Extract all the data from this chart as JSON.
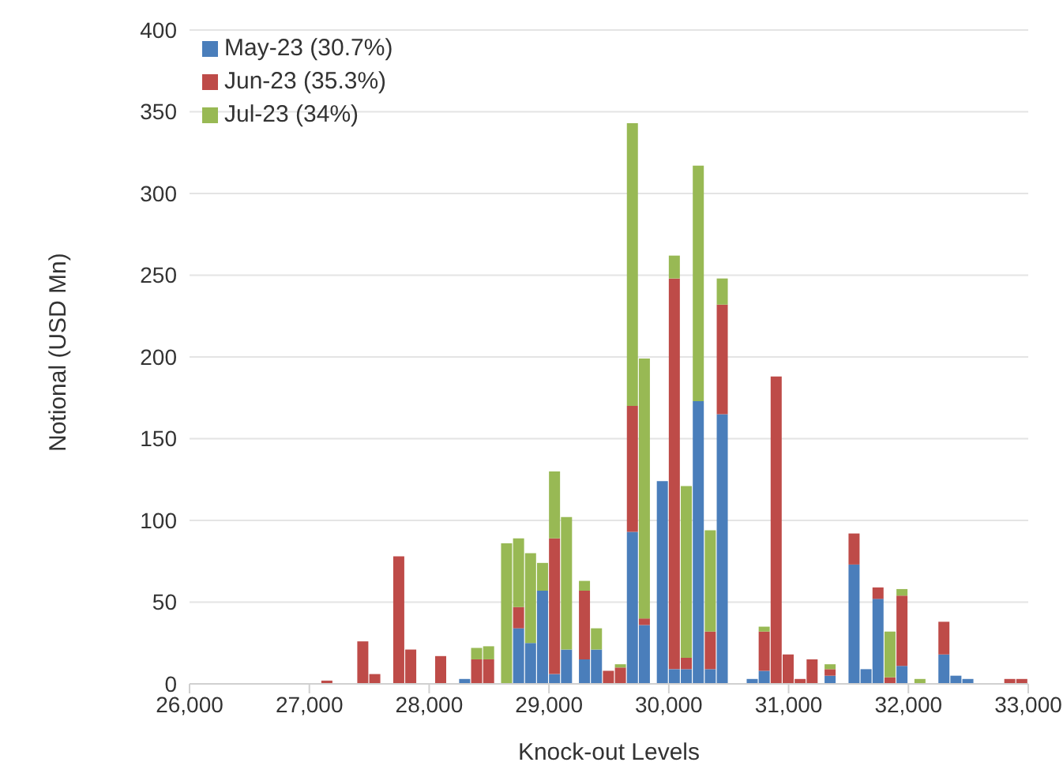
{
  "chart_data": {
    "type": "bar",
    "stacked": true,
    "xlabel": "Knock-out Levels",
    "ylabel": "Notional (USD Mn)",
    "x": [
      27150,
      27450,
      27550,
      27750,
      27850,
      28100,
      28300,
      28400,
      28500,
      28650,
      28750,
      28850,
      28950,
      29050,
      29150,
      29300,
      29400,
      29500,
      29600,
      29700,
      29800,
      29950,
      30050,
      30150,
      30250,
      30350,
      30450,
      30700,
      30800,
      30900,
      31000,
      31100,
      31200,
      31350,
      31550,
      31650,
      31750,
      31850,
      31950,
      32100,
      32300,
      32400,
      32500,
      32850,
      32950
    ],
    "series": [
      {
        "name": "May-23 (30.7%)",
        "color": "#4a7ebb",
        "values": [
          null,
          null,
          null,
          null,
          null,
          null,
          3,
          null,
          null,
          null,
          34,
          25,
          57,
          6,
          21,
          15,
          21,
          null,
          null,
          93,
          36,
          124,
          9,
          9,
          173,
          9,
          165,
          3,
          8,
          null,
          null,
          null,
          null,
          5,
          73,
          9,
          52,
          null,
          11,
          null,
          18,
          5,
          3,
          null,
          null
        ]
      },
      {
        "name": "Jun-23 (35.3%)",
        "color": "#be4b48",
        "values": [
          2,
          26,
          6,
          78,
          21,
          17,
          null,
          15,
          15,
          null,
          13,
          null,
          null,
          83,
          null,
          42,
          null,
          8,
          10,
          77,
          4,
          null,
          239,
          7,
          null,
          23,
          67,
          null,
          24,
          188,
          18,
          3,
          15,
          4,
          19,
          null,
          7,
          4,
          43,
          null,
          20,
          null,
          null,
          3,
          3
        ]
      },
      {
        "name": "Jul-23 (34%)",
        "color": "#98b954",
        "values": [
          null,
          null,
          null,
          null,
          null,
          null,
          null,
          7,
          8,
          86,
          42,
          55,
          17,
          41,
          81,
          6,
          13,
          null,
          2,
          173,
          159,
          null,
          14,
          105,
          144,
          62,
          16,
          null,
          3,
          null,
          null,
          null,
          null,
          3,
          null,
          null,
          null,
          28,
          4,
          3,
          null,
          null,
          null,
          null,
          null
        ]
      }
    ],
    "xlim": [
      26000,
      33000
    ],
    "xticks": [
      {
        "value": 26000,
        "label": "26,000"
      },
      {
        "value": 27000,
        "label": "27,000"
      },
      {
        "value": 28000,
        "label": "28,000"
      },
      {
        "value": 29000,
        "label": "29,000"
      },
      {
        "value": 30000,
        "label": "30,000"
      },
      {
        "value": 31000,
        "label": "31,000"
      },
      {
        "value": 32000,
        "label": "32,000"
      },
      {
        "value": 33000,
        "label": "33,000"
      }
    ],
    "ylim": [
      0,
      400
    ],
    "yticks": [
      0,
      50,
      100,
      150,
      200,
      250,
      300,
      350,
      400
    ],
    "grid": "y",
    "legend": "top left"
  }
}
